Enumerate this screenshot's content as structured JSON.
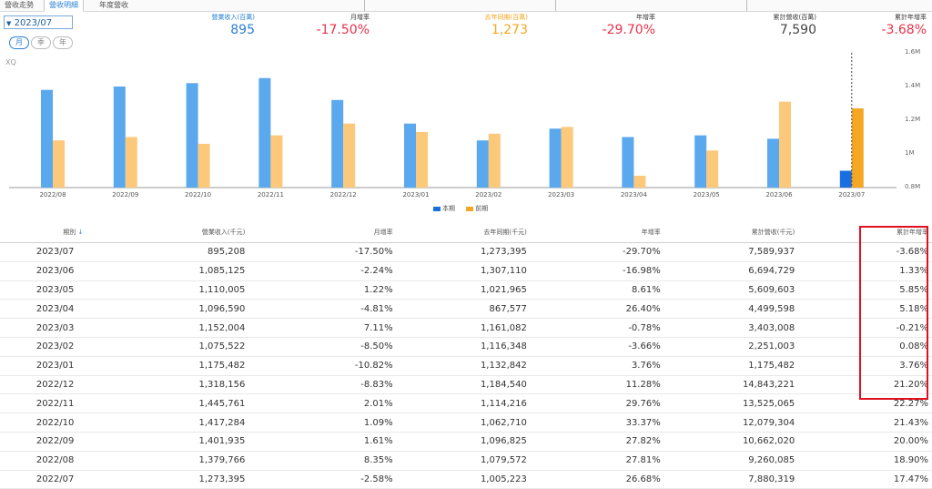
{
  "tabs": [
    {
      "label": "營收走勢",
      "active": false
    },
    {
      "label": "營收明細",
      "active": true
    },
    {
      "label": "年度營收",
      "active": false
    }
  ],
  "period_select": {
    "value": "2023/07",
    "arrow": "chevron-down-icon"
  },
  "frequency": [
    {
      "label": "月",
      "active": true
    },
    {
      "label": "季",
      "active": false
    },
    {
      "label": "年",
      "active": false
    }
  ],
  "stats": [
    {
      "label": "營業收入(百萬)",
      "value": "895",
      "label_color": "#2a7fd4",
      "value_color": "#2a7fd4"
    },
    {
      "label": "月增率",
      "value": "-17.50%",
      "label_color": "#333333",
      "value_color": "#e8314a"
    },
    {
      "label": "去年同期(百萬)",
      "value": "1,273",
      "label_color": "#f5a623",
      "value_color": "#f5a623"
    },
    {
      "label": "年增率",
      "value": "-29.70%",
      "label_color": "#333333",
      "value_color": "#e8314a"
    },
    {
      "label": "累計營收(百萬)",
      "value": "7,590",
      "label_color": "#333333",
      "value_color": "#444444"
    },
    {
      "label": "累計年增率",
      "value": "-3.68%",
      "label_color": "#333333",
      "value_color": "#e8314a"
    }
  ],
  "chart_watermark": "XQ",
  "chart_data": {
    "type": "bar",
    "categories": [
      "2022/08",
      "2022/09",
      "2022/10",
      "2022/11",
      "2022/12",
      "2023/01",
      "2023/02",
      "2023/03",
      "2023/04",
      "2023/05",
      "2023/06",
      "2023/07"
    ],
    "series": [
      {
        "name": "本期",
        "values": [
          1.38,
          1.4,
          1.42,
          1.45,
          1.32,
          1.18,
          1.08,
          1.15,
          1.1,
          1.11,
          1.09,
          0.9
        ],
        "color": "#5aa8ee",
        "highlight_color": "#1a6fe0"
      },
      {
        "name": "前期",
        "values": [
          1.08,
          1.1,
          1.06,
          1.11,
          1.18,
          1.13,
          1.12,
          1.16,
          0.87,
          1.02,
          1.31,
          1.27
        ],
        "color": "#fcc87a",
        "highlight_color": "#f5a623"
      }
    ],
    "y_ticks": [
      "1.6M",
      "1.4M",
      "1.2M",
      "1M",
      "0.8M"
    ],
    "ylim": [
      0.8,
      1.6
    ],
    "legend": [
      "本期",
      "前期"
    ]
  },
  "table": {
    "headers": [
      "期別",
      "營業收入(千元)",
      "月增率",
      "去年同期(千元)",
      "年增率",
      "累計營收(千元)",
      "累計年增率"
    ],
    "rows": [
      [
        "2023/07",
        "895,208",
        "-17.50%",
        "1,273,395",
        "-29.70%",
        "7,589,937",
        "-3.68%"
      ],
      [
        "2023/06",
        "1,085,125",
        "-2.24%",
        "1,307,110",
        "-16.98%",
        "6,694,729",
        "1.33%"
      ],
      [
        "2023/05",
        "1,110,005",
        "1.22%",
        "1,021,965",
        "8.61%",
        "5,609,603",
        "5.85%"
      ],
      [
        "2023/04",
        "1,096,590",
        "-4.81%",
        "867,577",
        "26.40%",
        "4,499,598",
        "5.18%"
      ],
      [
        "2023/03",
        "1,152,004",
        "7.11%",
        "1,161,082",
        "-0.78%",
        "3,403,008",
        "-0.21%"
      ],
      [
        "2023/02",
        "1,075,522",
        "-8.50%",
        "1,116,348",
        "-3.66%",
        "2,251,003",
        "0.08%"
      ],
      [
        "2023/01",
        "1,175,482",
        "-10.82%",
        "1,132,842",
        "3.76%",
        "1,175,482",
        "3.76%"
      ],
      [
        "2022/12",
        "1,318,156",
        "-8.83%",
        "1,184,540",
        "11.28%",
        "14,843,221",
        "21.20%"
      ],
      [
        "2022/11",
        "1,445,761",
        "2.01%",
        "1,114,216",
        "29.76%",
        "13,525,065",
        "22.27%"
      ],
      [
        "2022/10",
        "1,417,284",
        "1.09%",
        "1,062,710",
        "33.37%",
        "12,079,304",
        "21.43%"
      ],
      [
        "2022/09",
        "1,401,935",
        "1.61%",
        "1,096,825",
        "27.82%",
        "10,662,020",
        "20.00%"
      ],
      [
        "2022/08",
        "1,379,766",
        "8.35%",
        "1,079,572",
        "27.81%",
        "9,260,085",
        "18.90%"
      ],
      [
        "2022/07",
        "1,273,395",
        "-2.58%",
        "1,005,223",
        "26.68%",
        "7,880,319",
        "17.47%"
      ]
    ]
  },
  "colors": {
    "negative": "#e8314a",
    "accent": "#2a7fd4",
    "highlight_box": "#e0101e"
  }
}
